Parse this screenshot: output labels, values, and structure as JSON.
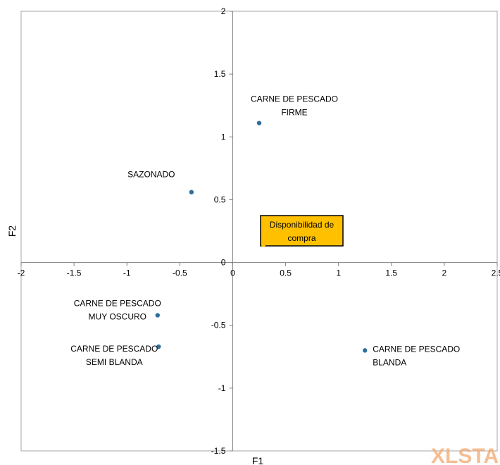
{
  "chart_data": {
    "type": "scatter",
    "xlabel": "F1",
    "ylabel": "F2",
    "xlim": [
      -2,
      2.5
    ],
    "ylim": [
      -1.5,
      2
    ],
    "xticks": [
      "-2",
      "-1.5",
      "-1",
      "-0.5",
      "0",
      "0.5",
      "1",
      "1.5",
      "2",
      "2.5"
    ],
    "xtick_values": [
      -2,
      -1.5,
      -1,
      -0.5,
      0,
      0.5,
      1,
      1.5,
      2,
      2.5
    ],
    "yticks": [
      "-1.5",
      "-1",
      "-0.5",
      "0",
      "0.5",
      "1",
      "1.5",
      "2"
    ],
    "ytick_values": [
      -1.5,
      -1,
      -0.5,
      0,
      0.5,
      1,
      1.5,
      2
    ],
    "grid": false,
    "point_color": "#2e6f9e",
    "points": [
      {
        "label_lines": [
          "CARNE DE PESCADO",
          "FIRME"
        ],
        "x": 0.25,
        "y": 1.11
      },
      {
        "label_lines": [
          "SAZONADO"
        ],
        "x": -0.39,
        "y": 0.56
      },
      {
        "label_lines": [
          "CARNE DE PESCADO",
          "MUY OSCURO"
        ],
        "x": -0.71,
        "y": -0.42
      },
      {
        "label_lines": [
          "CARNE DE PESCADO",
          "SEMI BLANDA"
        ],
        "x": -0.7,
        "y": -0.67
      },
      {
        "label_lines": [
          "CARNE DE PESCADO",
          "BLANDA"
        ],
        "x": 1.25,
        "y": -0.7
      }
    ],
    "supplementary": {
      "label_lines": [
        "Disponibilidad de",
        "compra"
      ],
      "x": 0.29,
      "y": 0.14,
      "color": "#ffc000"
    }
  },
  "watermark": "XLSTA"
}
